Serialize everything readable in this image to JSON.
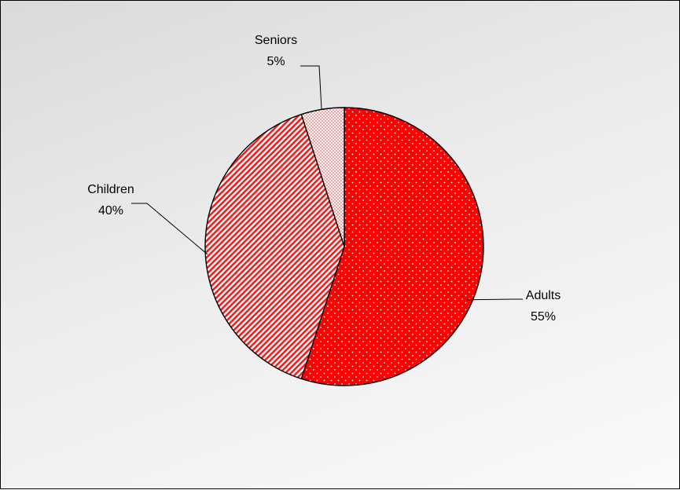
{
  "chart_data": {
    "type": "pie",
    "start_angle_deg": 0,
    "direction": "clockwise",
    "slices": [
      {
        "label": "Adults",
        "value": 55,
        "percent_label": "55%",
        "color": "#ff0000",
        "pattern": "dots"
      },
      {
        "label": "Children",
        "value": 40,
        "percent_label": "40%",
        "color": "#ff0000",
        "pattern": "diagonal-stripes"
      },
      {
        "label": "Seniors",
        "value": 5,
        "percent_label": "5%",
        "color": "#ff0000",
        "pattern": "sparse-dots"
      }
    ],
    "legend": "none",
    "data_labels": "outside-with-leader-lines"
  }
}
